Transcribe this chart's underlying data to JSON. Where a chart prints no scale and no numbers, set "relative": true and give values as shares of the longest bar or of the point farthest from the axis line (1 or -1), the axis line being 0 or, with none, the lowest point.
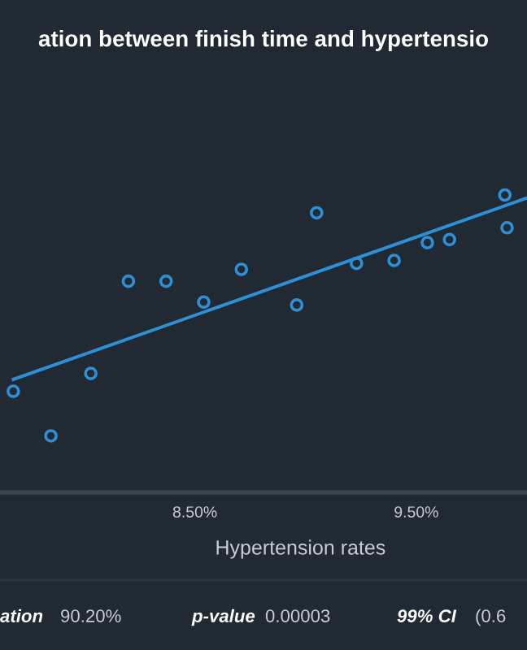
{
  "chart_data": {
    "type": "scatter",
    "title": "ation between finish time and hypertensio",
    "xlabel": "Hypertension rates",
    "relative": true,
    "xlim": [
      7.62,
      10.0
    ],
    "xticks": [
      {
        "value": 8.5,
        "label": "8.50%"
      },
      {
        "value": 9.5,
        "label": "9.50%"
      }
    ],
    "grid": false,
    "legend": false,
    "series": [
      {
        "marker": "circle",
        "color": "#2d8fd5",
        "x": [
          7.68,
          7.85,
          8.03,
          8.2,
          8.37,
          8.54,
          8.71,
          8.96,
          9.05,
          9.23,
          9.4,
          9.55,
          9.65,
          9.9,
          9.91
        ],
        "values": [
          0.34,
          0.19,
          0.4,
          0.71,
          0.71,
          0.64,
          0.75,
          0.63,
          0.94,
          0.77,
          0.78,
          0.84,
          0.85,
          1.0,
          0.89
        ]
      },
      {
        "type": "line",
        "marker": "none",
        "color": "#2d8fd5",
        "x": [
          7.68,
          10.0
        ],
        "values": [
          0.38,
          0.99
        ]
      }
    ],
    "annotations": [
      "ation",
      "90.20%",
      "p-value",
      "0.00003",
      "99% CI",
      "(0.6"
    ]
  }
}
